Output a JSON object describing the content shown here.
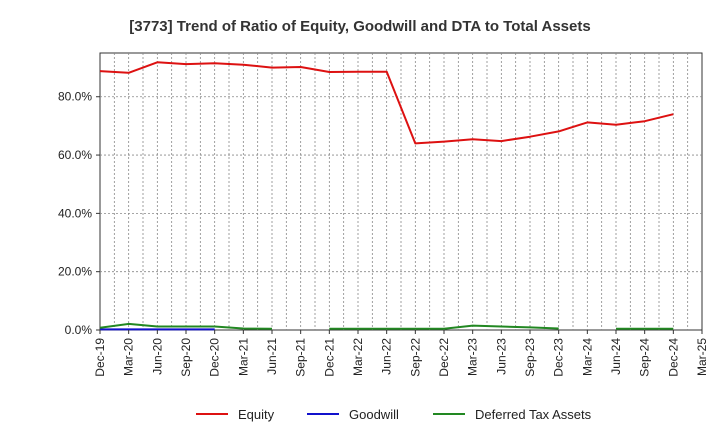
{
  "chart_data": {
    "type": "line",
    "title": "[3773]  Trend of Ratio of Equity, Goodwill and DTA to Total Assets",
    "xlabel": "",
    "ylabel": "",
    "categories": [
      "Dec-19",
      "Mar-20",
      "Jun-20",
      "Sep-20",
      "Dec-20",
      "Mar-21",
      "Jun-21",
      "Sep-21",
      "Dec-21",
      "Mar-22",
      "Jun-22",
      "Sep-22",
      "Dec-22",
      "Mar-23",
      "Jun-23",
      "Sep-23",
      "Dec-23",
      "Mar-24",
      "Jun-24",
      "Sep-24",
      "Dec-24",
      "Mar-25"
    ],
    "y_ticks": [
      "0.0%",
      "20.0%",
      "40.0%",
      "60.0%",
      "80.0%"
    ],
    "y_tick_values": [
      0,
      20,
      40,
      60,
      80
    ],
    "ylim": [
      0,
      95
    ],
    "grid": true,
    "legend_position": "bottom",
    "series": [
      {
        "name": "Equity",
        "color": "#dd1111",
        "points": [
          [
            "Dec-19",
            88.8
          ],
          [
            "Mar-20",
            88.2
          ],
          [
            "Jun-20",
            91.8
          ],
          [
            "Sep-20",
            91.2
          ],
          [
            "Dec-20",
            91.5
          ],
          [
            "Mar-21",
            91.0
          ],
          [
            "Jun-21",
            90.0
          ],
          [
            "Sep-21",
            90.2
          ],
          [
            "Dec-21",
            88.5
          ],
          [
            "Mar-22",
            88.6
          ],
          [
            "Jun-22",
            88.6
          ],
          [
            "Sep-22",
            64.0
          ],
          [
            "Dec-22",
            64.6
          ],
          [
            "Mar-23",
            65.4
          ],
          [
            "Jun-23",
            64.8
          ],
          [
            "Sep-23",
            66.3
          ],
          [
            "Dec-23",
            68.1
          ],
          [
            "Mar-24",
            71.2
          ],
          [
            "Jun-24",
            70.4
          ],
          [
            "Sep-24",
            71.6
          ],
          [
            "Dec-24",
            74.0
          ]
        ]
      },
      {
        "name": "Goodwill",
        "color": "#1111cc",
        "points": [
          [
            "Dec-19",
            0.2
          ],
          [
            "Mar-20",
            0.2
          ],
          [
            "Jun-20",
            0.2
          ],
          [
            "Sep-20",
            0.2
          ],
          [
            "Dec-20",
            0.2
          ]
        ]
      },
      {
        "name": "Deferred Tax Assets",
        "color": "#228822",
        "segments": [
          [
            [
              "Dec-19",
              0.8
            ],
            [
              "Mar-20",
              2.1
            ],
            [
              "Jun-20",
              1.2
            ],
            [
              "Sep-20",
              1.2
            ],
            [
              "Dec-20",
              1.2
            ],
            [
              "Mar-21",
              0.5
            ],
            [
              "Jun-21",
              0.4
            ]
          ],
          [
            [
              "Dec-21",
              0.4
            ],
            [
              "Mar-22",
              0.4
            ],
            [
              "Jun-22",
              0.4
            ],
            [
              "Sep-22",
              0.4
            ],
            [
              "Dec-22",
              0.4
            ],
            [
              "Mar-23",
              1.5
            ],
            [
              "Jun-23",
              1.2
            ],
            [
              "Sep-23",
              0.9
            ],
            [
              "Dec-23",
              0.5
            ]
          ],
          [
            [
              "Jun-24",
              0.4
            ],
            [
              "Sep-24",
              0.4
            ],
            [
              "Dec-24",
              0.4
            ]
          ]
        ]
      }
    ]
  }
}
